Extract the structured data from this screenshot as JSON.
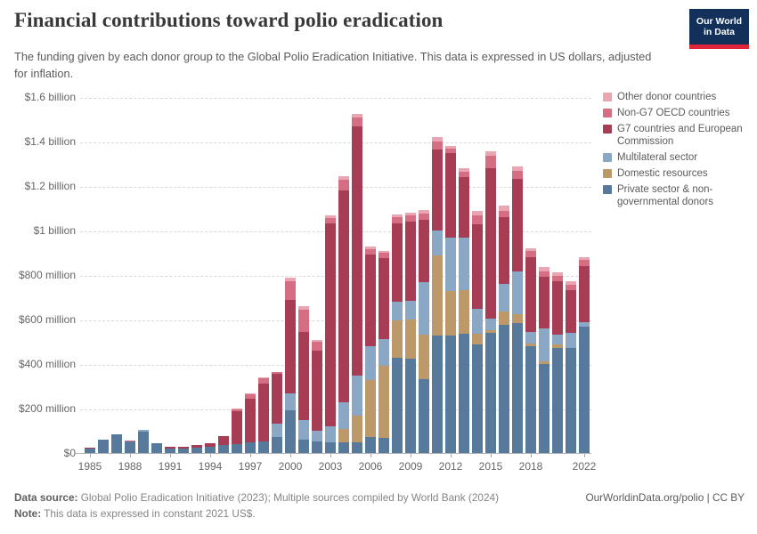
{
  "header": {
    "title": "Financial contributions toward polio eradication",
    "subtitle": "The funding given by each donor group to the Global Polio Eradication Initiative. This data is expressed in US dollars, adjusted for inflation.",
    "logo": {
      "line1": "Our World",
      "line2": "in Data",
      "bg_color": "#12305a",
      "accent_color": "#e0243a"
    }
  },
  "legend": [
    {
      "label": "Other donor countries",
      "color": "#e9a6b2"
    },
    {
      "label": "Non-G7 OECD countries",
      "color": "#d56e82"
    },
    {
      "label": "G7 countries and European Commission",
      "color": "#a73c55"
    },
    {
      "label": "Multilateral sector",
      "color": "#8aa8c6"
    },
    {
      "label": "Domestic resources",
      "color": "#bd9868"
    },
    {
      "label": "Private sector & non-governmental donors",
      "color": "#57799c"
    }
  ],
  "chart_data": {
    "type": "bar",
    "stacked": true,
    "title": "Financial contributions toward polio eradication",
    "unit": "US$ millions (constant 2021 US$)",
    "ylim": [
      0,
      1600
    ],
    "grid": "dashed-horizontal",
    "legend_position": "right",
    "x": [
      1985,
      1986,
      1987,
      1988,
      1989,
      1990,
      1991,
      1992,
      1993,
      1994,
      1995,
      1996,
      1997,
      1998,
      1999,
      2000,
      2001,
      2002,
      2003,
      2004,
      2005,
      2006,
      2007,
      2008,
      2009,
      2010,
      2011,
      2012,
      2013,
      2014,
      2015,
      2016,
      2017,
      2018,
      2019,
      2020,
      2021,
      2022
    ],
    "series": [
      {
        "name": "Private sector & non-governmental donors",
        "color": "#57799c",
        "values": [
          19,
          59,
          86,
          52,
          98,
          46,
          19,
          21,
          26,
          28,
          35,
          40,
          47,
          53,
          73,
          193,
          60,
          53,
          47,
          50,
          50,
          73,
          67,
          427,
          424,
          333,
          527,
          530,
          537,
          487,
          540,
          576,
          584,
          480,
          400,
          474,
          473,
          570
        ]
      },
      {
        "name": "Domestic resources",
        "color": "#bd9868",
        "values": [
          0,
          0,
          0,
          0,
          0,
          0,
          0,
          0,
          0,
          0,
          0,
          0,
          0,
          0,
          0,
          0,
          0,
          0,
          0,
          60,
          120,
          254,
          326,
          170,
          176,
          200,
          360,
          200,
          194,
          50,
          13,
          61,
          40,
          13,
          13,
          13,
          0,
          0
        ]
      },
      {
        "name": "Multilateral sector",
        "color": "#8aa8c6",
        "values": [
          0,
          0,
          0,
          0,
          5,
          0,
          0,
          0,
          0,
          0,
          0,
          0,
          0,
          0,
          60,
          76,
          87,
          47,
          73,
          120,
          180,
          153,
          120,
          83,
          83,
          234,
          113,
          240,
          236,
          110,
          50,
          123,
          192,
          53,
          147,
          46,
          67,
          20
        ]
      },
      {
        "name": "G7 countries and European Commission",
        "color": "#a73c55",
        "values": [
          5,
          0,
          0,
          0,
          0,
          0,
          9,
          9,
          11,
          18,
          40,
          150,
          196,
          260,
          223,
          418,
          399,
          360,
          912,
          950,
          1120,
          412,
          362,
          353,
          357,
          281,
          365,
          377,
          273,
          380,
          678,
          300,
          417,
          333,
          233,
          240,
          193,
          250
        ]
      },
      {
        "name": "Non-G7 OECD countries",
        "color": "#d56e82",
        "values": [
          0,
          0,
          0,
          3,
          0,
          0,
          0,
          0,
          0,
          0,
          0,
          8,
          20,
          22,
          8,
          84,
          100,
          40,
          25,
          50,
          38,
          25,
          25,
          28,
          28,
          30,
          35,
          22,
          25,
          40,
          55,
          30,
          35,
          28,
          25,
          25,
          25,
          27
        ]
      },
      {
        "name": "Other donor countries",
        "color": "#e9a6b2",
        "values": [
          0,
          0,
          0,
          0,
          0,
          0,
          0,
          0,
          0,
          0,
          0,
          2,
          4,
          5,
          0,
          16,
          14,
          7,
          10,
          16,
          15,
          10,
          10,
          12,
          12,
          15,
          20,
          11,
          15,
          20,
          20,
          23,
          20,
          15,
          20,
          15,
          15,
          13
        ]
      }
    ],
    "y_ticks": [
      {
        "value": 1600,
        "label": "$1.6 billion"
      },
      {
        "value": 1400,
        "label": "$1.4 billion"
      },
      {
        "value": 1200,
        "label": "$1.2 billion"
      },
      {
        "value": 1000,
        "label": "$1 billion"
      },
      {
        "value": 800,
        "label": "$800 million"
      },
      {
        "value": 600,
        "label": "$600 million"
      },
      {
        "value": 400,
        "label": "$400 million"
      },
      {
        "value": 200,
        "label": "$200 million"
      },
      {
        "value": 0,
        "label": "$0"
      }
    ],
    "x_ticks": [
      1985,
      1988,
      1991,
      1994,
      1997,
      2000,
      2003,
      2006,
      2009,
      2012,
      2015,
      2018,
      2022
    ]
  },
  "footer": {
    "source_label": "Data source:",
    "source_text": " Global Polio Eradication Initiative (2023); Multiple sources compiled by World Bank (2024)",
    "note_label": "Note:",
    "note_text": " This data is expressed in constant 2021 US$.",
    "rights": "OurWorldinData.org/polio | CC BY"
  }
}
